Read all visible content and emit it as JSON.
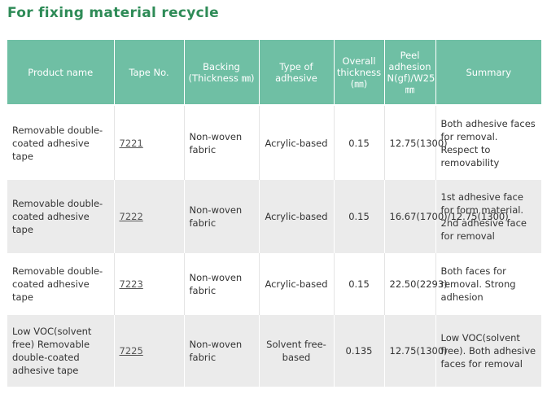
{
  "title": "For fixing material recycle",
  "headers": {
    "product_name": "Product name",
    "tape_no": "Tape No.",
    "backing": "Backing (Thickness ㎜)",
    "adhesive_type": "Type of adhesive",
    "overall_thickness": "Overall thickness (㎜)",
    "peel_adhesion": "Peel adhesion N(gf)/W25 ㎜",
    "summary": "Summary"
  },
  "rows": [
    {
      "product_name": "Removable double-coated adhesive tape",
      "tape_no": "7221",
      "backing": "Non-woven fabric",
      "adhesive_type": "Acrylic-based",
      "overall_thickness": "0.15",
      "peel_adhesion": "12.75(1300)",
      "summary": "Both adhesive faces for removal. Respect to removability"
    },
    {
      "product_name": "Removable double-coated adhesive tape",
      "tape_no": "7222",
      "backing": "Non-woven fabric",
      "adhesive_type": "Acrylic-based",
      "overall_thickness": "0.15",
      "peel_adhesion": "16.67(1700)/12.75(1300)",
      "summary": "1st adhesive face for form material. 2nd adhesive face for removal"
    },
    {
      "product_name": "Removable double-coated adhesive tape",
      "tape_no": "7223",
      "backing": "Non-woven fabric",
      "adhesive_type": "Acrylic-based",
      "overall_thickness": "0.15",
      "peel_adhesion": "22.50(2293)",
      "summary": "Both faces for removal. Strong adhesion"
    },
    {
      "product_name": "Low VOC(solvent free) Removable double-coated adhesive tape",
      "tape_no": "7225",
      "backing": "Non-woven fabric",
      "adhesive_type": "Solvent free-based",
      "overall_thickness": "0.135",
      "peel_adhesion": "12.75(1300)",
      "summary": "Low VOC(solvent free). Both adhesive faces for removal"
    }
  ],
  "colors": {
    "title": "#2e8b57",
    "header_bg": "#6fbfa4",
    "row_alt_bg": "#ebebeb"
  }
}
